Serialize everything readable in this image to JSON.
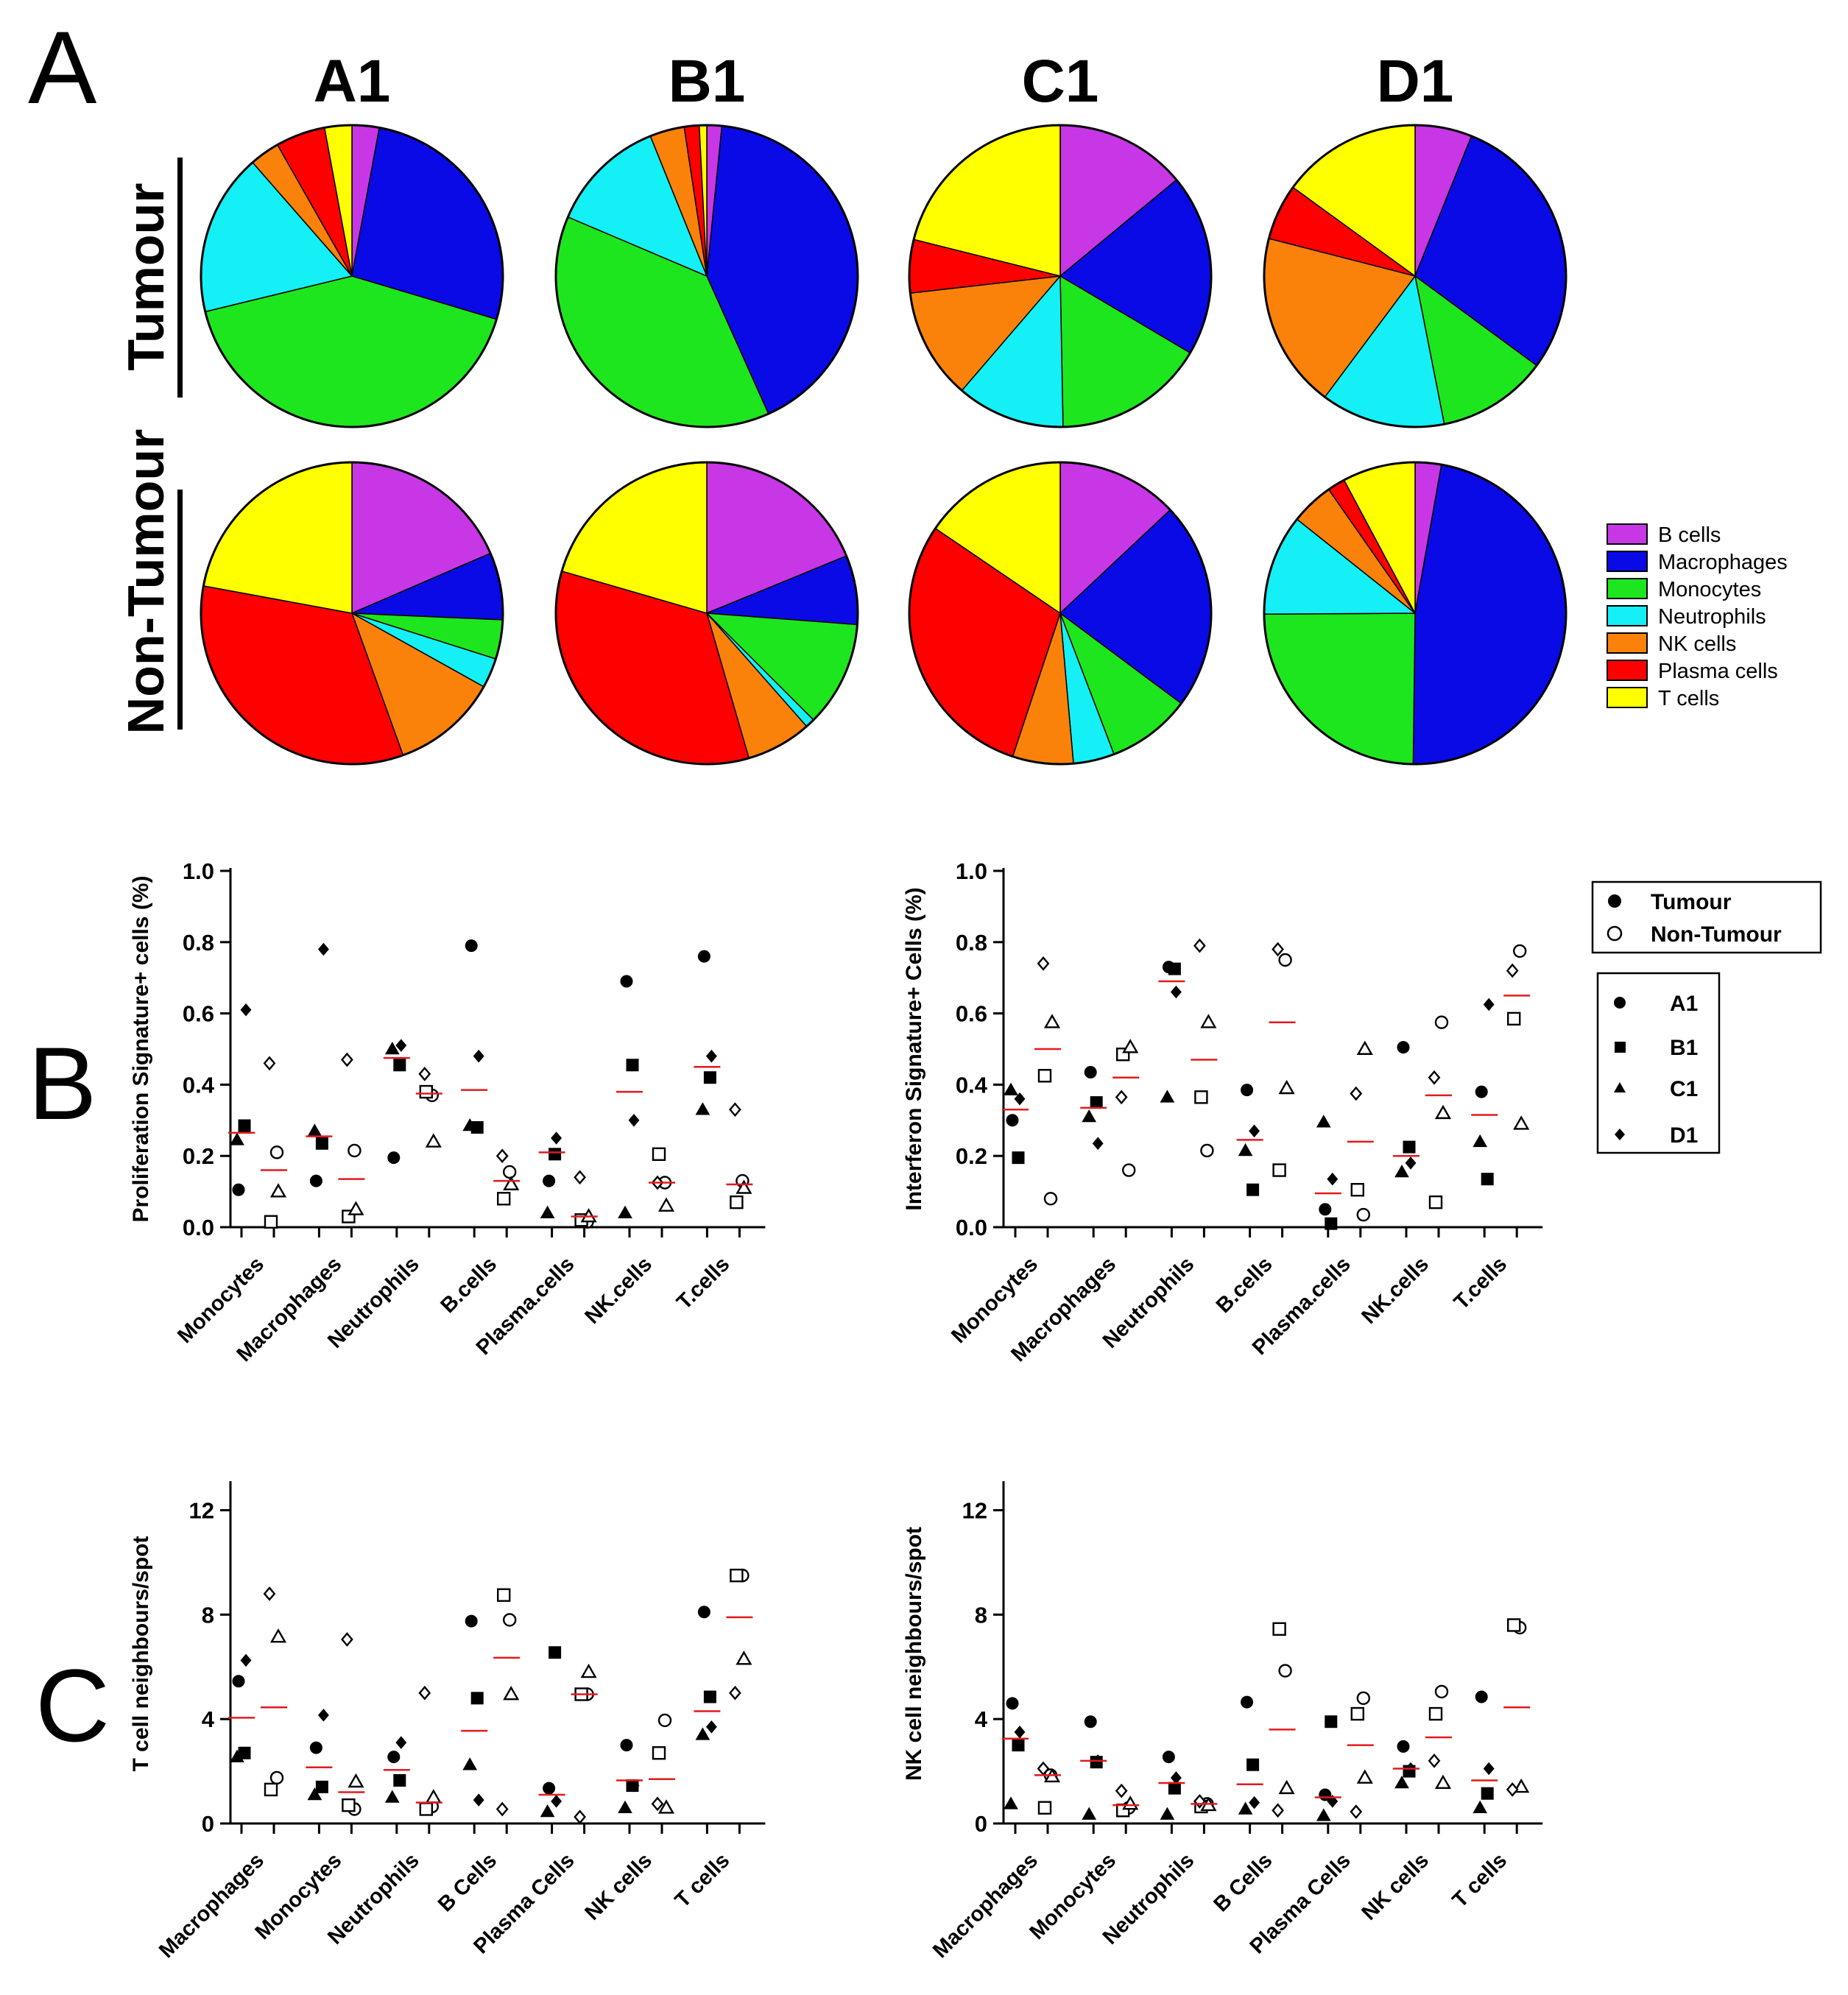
{
  "panel_letters": [
    "A",
    "B",
    "C"
  ],
  "pie_legend": {
    "items": [
      {
        "label": "B cells",
        "color": "#c837e6"
      },
      {
        "label": "Macrophages",
        "color": "#0a0ae6"
      },
      {
        "label": "Monocytes",
        "color": "#1ee61e"
      },
      {
        "label": "Neutrophils",
        "color": "#14f0f5"
      },
      {
        "label": "NK cells",
        "color": "#fa820a"
      },
      {
        "label": "Plasma cells",
        "color": "#ff0000"
      },
      {
        "label": "T cells",
        "color": "#ffff00"
      }
    ]
  },
  "pie_rows": [
    "Tumour",
    "Non-Tumour"
  ],
  "pie_columns": [
    "A1",
    "B1",
    "C1",
    "D1"
  ],
  "scatter_legend": {
    "tissue": [
      "Tumour",
      "Non-Tumour"
    ],
    "samples": [
      "A1",
      "B1",
      "C1",
      "D1"
    ]
  },
  "chart_data": [
    {
      "type": "pie",
      "panel": "A",
      "row": "Tumour",
      "column": "A1",
      "labels": [
        "B cells",
        "Macrophages",
        "Monocytes",
        "Neutrophils",
        "NK cells",
        "Plasma cells",
        "T cells"
      ],
      "values": [
        2.8,
        25.7,
        40.0,
        16.7,
        3.1,
        5.1,
        2.8
      ]
    },
    {
      "type": "pie",
      "panel": "A",
      "row": "Tumour",
      "column": "B1",
      "labels": [
        "B cells",
        "Macrophages",
        "Monocytes",
        "Neutrophils",
        "NK cells",
        "Plasma cells",
        "T cells"
      ],
      "values": [
        1.6,
        41.7,
        38.1,
        12.5,
        3.7,
        1.6,
        0.8
      ]
    },
    {
      "type": "pie",
      "panel": "A",
      "row": "Tumour",
      "column": "C1",
      "labels": [
        "B cells",
        "Macrophages",
        "Monocytes",
        "Neutrophils",
        "NK cells",
        "Plasma cells",
        "T cells"
      ],
      "values": [
        14.0,
        19.5,
        16.2,
        11.6,
        11.9,
        5.7,
        21.1
      ]
    },
    {
      "type": "pie",
      "panel": "A",
      "row": "Tumour",
      "column": "D1",
      "labels": [
        "B cells",
        "Macrophages",
        "Monocytes",
        "Neutrophils",
        "NK cells",
        "Plasma cells",
        "T cells"
      ],
      "values": [
        6.1,
        29.0,
        11.8,
        13.3,
        18.8,
        6.0,
        15.0
      ]
    },
    {
      "type": "pie",
      "panel": "A",
      "row": "Non-Tumour",
      "column": "A1",
      "labels": [
        "B cells",
        "Macrophages",
        "Monocytes",
        "Neutrophils",
        "NK cells",
        "Plasma cells",
        "T cells"
      ],
      "values": [
        18.5,
        7.2,
        4.2,
        3.2,
        11.4,
        33.4,
        22.1
      ]
    },
    {
      "type": "pie",
      "panel": "A",
      "row": "Non-Tumour",
      "column": "B1",
      "labels": [
        "B cells",
        "Macrophages",
        "Monocytes",
        "Neutrophils",
        "NK cells",
        "Plasma cells",
        "T cells"
      ],
      "values": [
        18.8,
        7.4,
        11.3,
        1.0,
        7.0,
        34.0,
        20.5
      ]
    },
    {
      "type": "pie",
      "panel": "A",
      "row": "Non-Tumour",
      "column": "C1",
      "labels": [
        "B cells",
        "Macrophages",
        "Monocytes",
        "Neutrophils",
        "NK cells",
        "Plasma cells",
        "T cells"
      ],
      "values": [
        13.0,
        22.2,
        9.0,
        4.4,
        6.5,
        29.4,
        15.5
      ]
    },
    {
      "type": "pie",
      "panel": "A",
      "row": "Non-Tumour",
      "column": "D1",
      "labels": [
        "B cells",
        "Macrophages",
        "Monocytes",
        "Neutrophils",
        "NK cells",
        "Plasma cells",
        "T cells"
      ],
      "values": [
        2.8,
        47.4,
        24.7,
        10.8,
        4.6,
        1.9,
        7.8
      ]
    },
    {
      "type": "scatter",
      "panel": "B",
      "ylabel": "Proliferation Signature+ cells (%)",
      "ylim": [
        0,
        1.0
      ],
      "yticks": [
        "0.0",
        "0.2",
        "0.4",
        "0.6",
        "0.8",
        "1.0"
      ],
      "categories": [
        "Monocytes",
        "Macrophages",
        "Neutrophils",
        "B.cells",
        "Plasma.cells",
        "NK.cells",
        "T.cells"
      ],
      "tumour": {
        "A1": [
          0.105,
          0.13,
          0.195,
          0.79,
          0.13,
          0.69,
          0.76
        ],
        "B1": [
          0.285,
          0.235,
          0.455,
          0.28,
          0.205,
          0.455,
          0.42
        ],
        "C1": [
          0.245,
          0.27,
          0.5,
          0.285,
          0.04,
          0.04,
          0.33
        ],
        "D1": [
          0.61,
          0.78,
          0.51,
          0.48,
          0.25,
          0.3,
          0.48
        ]
      },
      "tumour_mean": [
        0.265,
        0.255,
        0.475,
        0.385,
        0.21,
        0.38,
        0.45
      ],
      "nontumour": {
        "A1": [
          0.21,
          0.215,
          0.37,
          0.155,
          0.015,
          0.125,
          0.13
        ],
        "B1": [
          0.015,
          0.03,
          0.38,
          0.08,
          0.02,
          0.205,
          0.07
        ],
        "C1": [
          0.1,
          0.05,
          0.24,
          0.12,
          0.03,
          0.06,
          0.11
        ],
        "D1": [
          0.46,
          0.47,
          0.43,
          0.2,
          0.14,
          0.125,
          0.33
        ]
      },
      "nontumour_mean": [
        0.16,
        0.135,
        0.375,
        0.13,
        0.03,
        0.125,
        0.12
      ]
    },
    {
      "type": "scatter",
      "panel": "B",
      "ylabel": "Interferon Signature+ Cells (%)",
      "ylim": [
        0,
        1.0
      ],
      "yticks": [
        "0.0",
        "0.2",
        "0.4",
        "0.6",
        "0.8",
        "1.0"
      ],
      "categories": [
        "Monocytes",
        "Macrophages",
        "Neutrophils",
        "B.cells",
        "Plasma.cells",
        "NK.cells",
        "T.cells"
      ],
      "tumour": {
        "A1": [
          0.3,
          0.435,
          0.73,
          0.385,
          0.05,
          0.505,
          0.38
        ],
        "B1": [
          0.195,
          0.35,
          0.725,
          0.105,
          0.01,
          0.225,
          0.135
        ],
        "C1": [
          0.385,
          0.31,
          0.365,
          0.215,
          0.295,
          0.155,
          0.24
        ],
        "D1": [
          0.36,
          0.235,
          0.66,
          0.27,
          0.135,
          0.18,
          0.625
        ]
      },
      "tumour_mean": [
        0.33,
        0.335,
        0.69,
        0.245,
        0.095,
        0.2,
        0.315
      ],
      "nontumour": {
        "A1": [
          0.08,
          0.16,
          0.215,
          0.75,
          0.035,
          0.575,
          0.775
        ],
        "B1": [
          0.425,
          0.485,
          0.365,
          0.16,
          0.105,
          0.07,
          0.585
        ],
        "C1": [
          0.575,
          0.505,
          0.575,
          0.39,
          0.5,
          0.32,
          0.29
        ],
        "D1": [
          0.74,
          0.365,
          0.79,
          0.78,
          0.375,
          0.42,
          0.72
        ]
      },
      "nontumour_mean": [
        0.5,
        0.42,
        0.47,
        0.575,
        0.24,
        0.37,
        0.65
      ]
    },
    {
      "type": "scatter",
      "panel": "C",
      "ylabel": "T cell neighbours/spot",
      "ylim": [
        0,
        13
      ],
      "yticks": [
        "0",
        "4",
        "8",
        "12"
      ],
      "categories": [
        "Macrophages",
        "Monocytes",
        "Neutrophils",
        "B Cells",
        "Plasma Cells",
        "NK cells",
        "T cells"
      ],
      "tumour": {
        "A1": [
          5.45,
          2.9,
          2.55,
          7.75,
          1.35,
          3.0,
          8.1
        ],
        "B1": [
          2.7,
          1.4,
          1.65,
          4.8,
          6.55,
          1.45,
          4.85
        ],
        "C1": [
          2.55,
          1.1,
          1.0,
          2.25,
          0.45,
          0.6,
          3.4
        ],
        "D1": [
          6.25,
          4.15,
          3.1,
          0.9,
          0.85,
          1.45,
          3.7
        ]
      },
      "tumour_mean": [
        4.05,
        2.15,
        2.05,
        3.55,
        1.1,
        1.65,
        4.3
      ],
      "nontumour": {
        "A1": [
          1.75,
          0.55,
          0.65,
          7.8,
          4.95,
          3.95,
          9.5
        ],
        "B1": [
          1.3,
          0.7,
          0.55,
          8.75,
          4.95,
          2.7,
          9.5
        ],
        "C1": [
          7.15,
          1.6,
          1.0,
          4.95,
          5.8,
          0.6,
          6.3
        ],
        "D1": [
          8.8,
          7.05,
          5.0,
          0.55,
          0.25,
          0.75,
          5.0
        ]
      },
      "nontumour_mean": [
        4.45,
        1.2,
        0.8,
        6.35,
        4.95,
        1.7,
        7.9
      ]
    },
    {
      "type": "scatter",
      "panel": "C",
      "ylabel": "NK cell neighbours/spot",
      "ylim": [
        0,
        13
      ],
      "yticks": [
        "0",
        "4",
        "8",
        "12"
      ],
      "categories": [
        "Macrophages",
        "Monocytes",
        "Neutrophils",
        "B Cells",
        "Plasma Cells",
        "NK cells",
        "T cells"
      ],
      "tumour": {
        "A1": [
          4.6,
          3.9,
          2.55,
          4.65,
          1.1,
          2.95,
          4.85
        ],
        "B1": [
          3.0,
          2.35,
          1.35,
          2.25,
          3.9,
          2.0,
          1.15
        ],
        "C1": [
          0.75,
          0.35,
          0.35,
          0.55,
          0.3,
          1.55,
          0.6
        ],
        "D1": [
          3.5,
          2.4,
          1.75,
          0.8,
          0.85,
          2.1,
          2.1
        ]
      },
      "tumour_mean": [
        3.25,
        2.4,
        1.55,
        1.5,
        1.0,
        2.1,
        1.65
      ],
      "nontumour": {
        "A1": [
          1.85,
          0.6,
          0.75,
          5.85,
          4.8,
          5.05,
          7.5
        ],
        "B1": [
          0.6,
          0.5,
          0.65,
          7.45,
          4.2,
          4.2,
          7.6
        ],
        "C1": [
          1.8,
          0.75,
          0.7,
          1.35,
          1.75,
          1.55,
          1.4
        ],
        "D1": [
          2.1,
          1.25,
          0.85,
          0.5,
          0.45,
          2.4,
          1.3
        ]
      },
      "nontumour_mean": [
        1.85,
        0.7,
        0.75,
        3.6,
        3.0,
        3.3,
        4.45
      ]
    }
  ]
}
